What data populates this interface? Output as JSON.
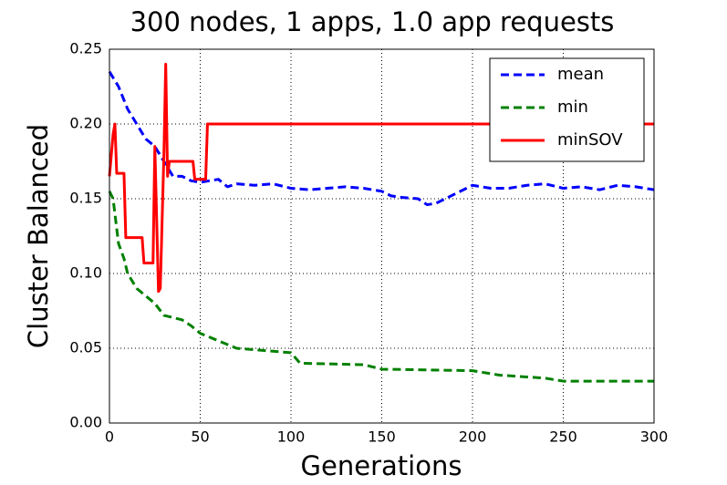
{
  "chart_data": {
    "type": "line",
    "title": "300 nodes, 1 apps, 1.0 app requests",
    "xlabel": "Generations",
    "ylabel": "Cluster Balanced",
    "xlim": [
      0,
      300
    ],
    "xticks": [
      0,
      50,
      100,
      150,
      200,
      250,
      300
    ],
    "ylim": [
      0,
      0.25
    ],
    "yticks": [
      {
        "value": 0,
        "label": "0.00"
      },
      {
        "value": 0.05,
        "label": "0.05"
      },
      {
        "value": 0.1,
        "label": "0.10"
      },
      {
        "value": 0.15,
        "label": "0.15"
      },
      {
        "value": 0.2,
        "label": "0.20"
      },
      {
        "value": 0.25,
        "label": "0.25"
      }
    ],
    "grid": true,
    "legend": "upper right",
    "series": [
      {
        "name": "mean",
        "color": "#0000ff",
        "linestyle": "dashed",
        "x": [
          0,
          5,
          10,
          15,
          20,
          25,
          30,
          35,
          40,
          45,
          50,
          55,
          60,
          65,
          70,
          80,
          90,
          100,
          110,
          120,
          130,
          140,
          150,
          155,
          160,
          170,
          175,
          180,
          190,
          200,
          210,
          220,
          230,
          240,
          250,
          260,
          270,
          280,
          290,
          300
        ],
        "values": [
          0.235,
          0.225,
          0.21,
          0.2,
          0.19,
          0.185,
          0.175,
          0.165,
          0.165,
          0.162,
          0.161,
          0.162,
          0.163,
          0.158,
          0.16,
          0.159,
          0.16,
          0.157,
          0.156,
          0.157,
          0.158,
          0.157,
          0.155,
          0.152,
          0.151,
          0.15,
          0.146,
          0.147,
          0.153,
          0.159,
          0.157,
          0.157,
          0.159,
          0.16,
          0.157,
          0.158,
          0.156,
          0.159,
          0.158,
          0.156
        ]
      },
      {
        "name": "min",
        "color": "#008000",
        "linestyle": "dashed",
        "x": [
          0,
          2,
          5,
          8,
          10,
          15,
          20,
          25,
          30,
          40,
          45,
          50,
          70,
          100,
          105,
          140,
          150,
          200,
          215,
          240,
          250,
          300
        ],
        "values": [
          0.155,
          0.15,
          0.12,
          0.11,
          0.1,
          0.09,
          0.085,
          0.08,
          0.072,
          0.069,
          0.065,
          0.06,
          0.05,
          0.047,
          0.04,
          0.039,
          0.036,
          0.035,
          0.032,
          0.03,
          0.028,
          0.028
        ]
      },
      {
        "name": "minSOV",
        "color": "#ff0000",
        "linestyle": "solid",
        "x": [
          0,
          2,
          3,
          4,
          8,
          9,
          18,
          19,
          24,
          25,
          27,
          28,
          30,
          31,
          32,
          33,
          46,
          47,
          53,
          54,
          300
        ],
        "values": [
          0.165,
          0.193,
          0.2,
          0.167,
          0.167,
          0.124,
          0.124,
          0.107,
          0.107,
          0.185,
          0.088,
          0.09,
          0.18,
          0.24,
          0.165,
          0.175,
          0.175,
          0.163,
          0.163,
          0.2,
          0.2
        ]
      }
    ]
  }
}
